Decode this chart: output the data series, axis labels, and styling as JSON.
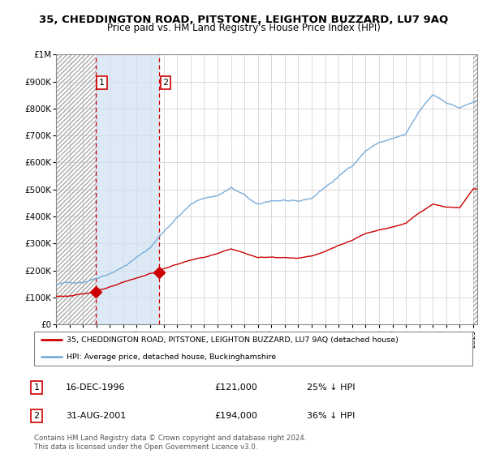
{
  "title": "35, CHEDDINGTON ROAD, PITSTONE, LEIGHTON BUZZARD, LU7 9AQ",
  "subtitle": "Price paid vs. HM Land Registry's House Price Index (HPI)",
  "title_fontsize": 9.5,
  "subtitle_fontsize": 8.5,
  "legend_line1": "35, CHEDDINGTON ROAD, PITSTONE, LEIGHTON BUZZARD, LU7 9AQ (detached house)",
  "legend_line2": "HPI: Average price, detached house, Buckinghamshire",
  "footnote": "Contains HM Land Registry data © Crown copyright and database right 2024.\nThis data is licensed under the Open Government Licence v3.0.",
  "marker1_label": "1",
  "marker1_date": "16-DEC-1996",
  "marker1_price": "£121,000",
  "marker1_hpi": "25% ↓ HPI",
  "marker2_label": "2",
  "marker2_date": "31-AUG-2001",
  "marker2_price": "£194,000",
  "marker2_hpi": "36% ↓ HPI",
  "red_color": "#cc0000",
  "blue_color": "#7aadda",
  "hatch_color": "#aaaaaa",
  "ylim": [
    0,
    1000000
  ],
  "xlim_start": 1994.0,
  "xlim_end": 2025.3,
  "purchase1_x": 1996.96,
  "purchase1_y": 121000,
  "purchase2_x": 2001.67,
  "purchase2_y": 194000,
  "hatch_left_end": 1996.96,
  "hatch_right_start": 2025.0,
  "blue_span_start": 1996.96,
  "blue_span_end": 2001.67
}
